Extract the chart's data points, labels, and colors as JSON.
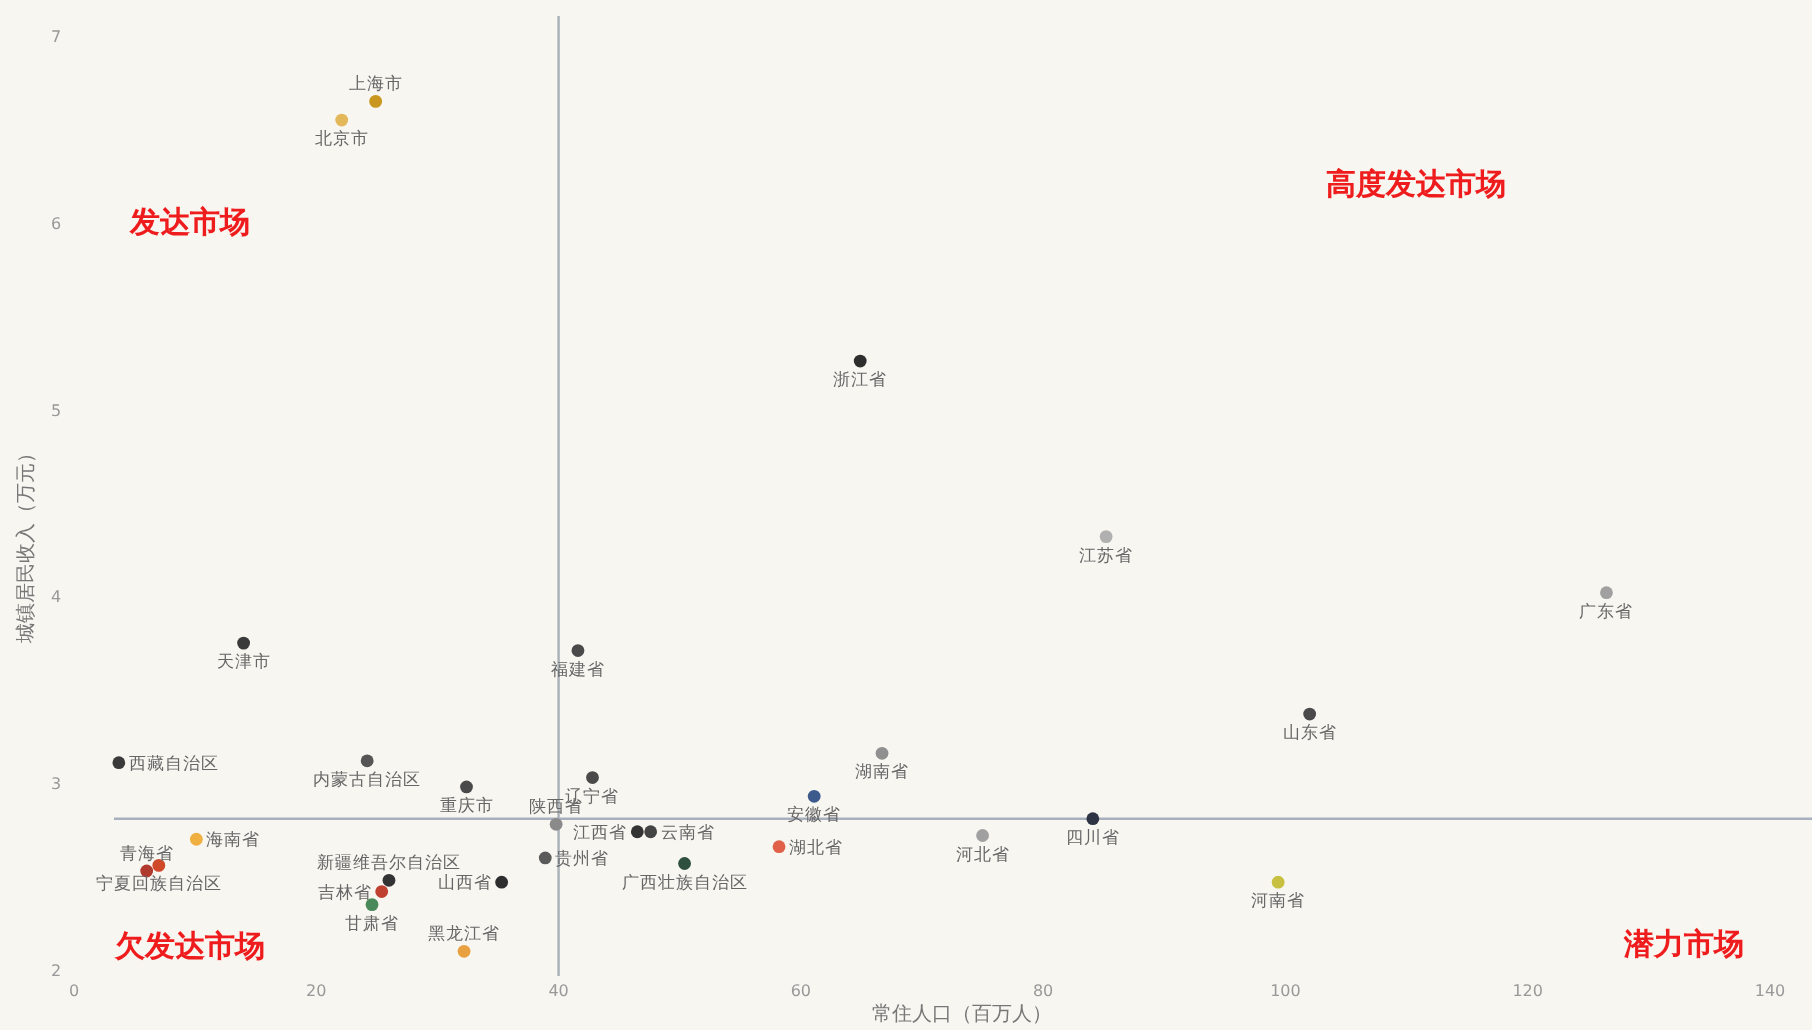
{
  "chart_data": {
    "type": "scatter",
    "xlabel": "常住人口（百万人）",
    "ylabel": "城镇居民收入（万元）",
    "xlim": [
      0,
      140
    ],
    "ylim": [
      2,
      7
    ],
    "xticks": [
      0,
      20,
      40,
      60,
      80,
      100,
      120,
      140
    ],
    "yticks": [
      2,
      3,
      4,
      5,
      6,
      7
    ],
    "marker": "circle",
    "ref_lines": [
      {
        "axis": "x",
        "value": 40,
        "color": "#a8b0b8"
      },
      {
        "axis": "y",
        "value": 2.81,
        "color": "#a8b0c0"
      }
    ],
    "series": [
      {
        "x": [
          24.9,
          22.1,
          64.9,
          85.2,
          126.5,
          14.0,
          41.6,
          102.0,
          3.7,
          24.2,
          66.7,
          32.4,
          42.8,
          61.1,
          84.1,
          39.8,
          38.9,
          35.3,
          46.5,
          47.6,
          58.2,
          50.4,
          99.4,
          75.0,
          6.0,
          7.0,
          10.1,
          26.0,
          25.4,
          24.6,
          32.2
        ],
        "values": [
          6.65,
          6.55,
          5.26,
          4.32,
          4.02,
          3.75,
          3.71,
          3.37,
          3.11,
          3.12,
          3.16,
          2.98,
          3.03,
          2.93,
          2.81,
          2.78,
          2.6,
          2.47,
          2.74,
          2.74,
          2.66,
          2.57,
          2.47,
          2.72,
          2.53,
          2.56,
          2.7,
          2.48,
          2.42,
          2.35,
          2.1
        ],
        "colors": [
          "#c9961e",
          "#e3b85a",
          "#2e2e2e",
          "#b0b0b0",
          "#a0a0a0",
          "#3a3a3a",
          "#4a4a4a",
          "#4a4a4a",
          "#3a3a3a",
          "#555555",
          "#909090",
          "#4a4a4a",
          "#4a4a4a",
          "#3c5a8c",
          "#2e3444",
          "#8a8a8a",
          "#5a5a5a",
          "#2e2e2e",
          "#333333",
          "#444444",
          "#e0604a",
          "#2f4f3f",
          "#c8c040",
          "#a0a0a0",
          "#b03a2e",
          "#d04a2a",
          "#f0b040",
          "#333333",
          "#c04030",
          "#4a8a5a",
          "#e8a040"
        ]
      }
    ],
    "annotations": [
      "发达市场",
      "高度发达市场",
      "欠发达市场",
      "潜力市场",
      {
        "text": "上海市",
        "x": 24.9,
        "y": 6.65
      },
      {
        "text": "北京市",
        "x": 22.1,
        "y": 6.55
      },
      {
        "text": "浙江省",
        "x": 64.9,
        "y": 5.26
      },
      {
        "text": "江苏省",
        "x": 85.2,
        "y": 4.32
      },
      {
        "text": "广东省",
        "x": 126.5,
        "y": 4.02
      },
      {
        "text": "天津市",
        "x": 14.0,
        "y": 3.75
      },
      {
        "text": "福建省",
        "x": 41.6,
        "y": 3.71
      },
      {
        "text": "山东省",
        "x": 102.0,
        "y": 3.37
      },
      {
        "text": "西藏自治区",
        "x": 3.7,
        "y": 3.11
      },
      {
        "text": "内蒙古自治区",
        "x": 24.2,
        "y": 3.12
      },
      {
        "text": "湖南省",
        "x": 66.7,
        "y": 3.16
      },
      {
        "text": "重庆市",
        "x": 32.4,
        "y": 2.98
      },
      {
        "text": "辽宁省",
        "x": 42.8,
        "y": 3.03
      },
      {
        "text": "安徽省",
        "x": 61.1,
        "y": 2.93
      },
      {
        "text": "四川省",
        "x": 84.1,
        "y": 2.81
      },
      {
        "text": "陕西省",
        "x": 39.8,
        "y": 2.78
      },
      {
        "text": "贵州省",
        "x": 38.9,
        "y": 2.6
      },
      {
        "text": "山西省",
        "x": 35.3,
        "y": 2.47
      },
      {
        "text": "江西省",
        "x": 46.5,
        "y": 2.74
      },
      {
        "text": "云南省",
        "x": 47.6,
        "y": 2.74
      },
      {
        "text": "湖北省",
        "x": 58.2,
        "y": 2.66
      },
      {
        "text": "广西壮族自治区",
        "x": 50.4,
        "y": 2.57
      },
      {
        "text": "河南省",
        "x": 99.4,
        "y": 2.47
      },
      {
        "text": "河北省",
        "x": 75.0,
        "y": 2.72
      },
      {
        "text": "青海省",
        "x": 6.0,
        "y": 2.53
      },
      {
        "text": "宁夏回族自治区",
        "x": 7.0,
        "y": 2.56
      },
      {
        "text": "海南省",
        "x": 10.1,
        "y": 2.7
      },
      {
        "text": "新疆维吾尔自治区",
        "x": 26.0,
        "y": 2.48
      },
      {
        "text": "吉林省",
        "x": 25.4,
        "y": 2.42
      },
      {
        "text": "甘肃省",
        "x": 24.6,
        "y": 2.35
      },
      {
        "text": "黑龙江省",
        "x": 32.2,
        "y": 2.1
      }
    ]
  }
}
